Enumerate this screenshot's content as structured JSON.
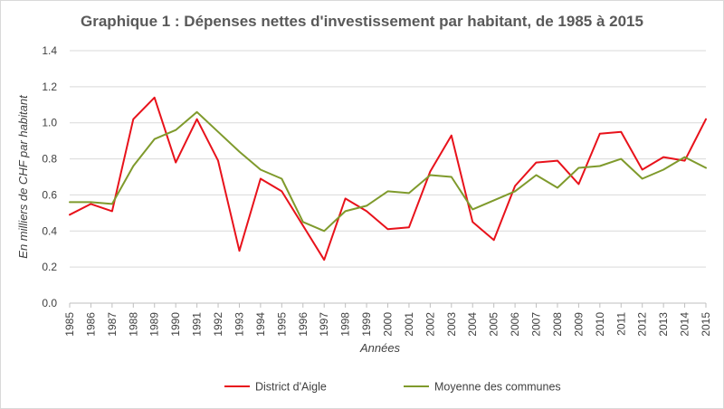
{
  "chart_data": {
    "type": "line",
    "title": "Graphique 1 : Dépenses nettes d'investissement par habitant, de 1985 à 2015",
    "xlabel": "Années",
    "ylabel": "En milliers de CHF par habitant",
    "ylim": [
      0,
      1.4
    ],
    "yticks": [
      "0.0",
      "0.2",
      "0.4",
      "0.6",
      "0.8",
      "1.0",
      "1.2",
      "1.4"
    ],
    "grid": "horizontal",
    "legend": "bottom",
    "categories": [
      "1985",
      "1986",
      "1987",
      "1988",
      "1989",
      "1990",
      "1991",
      "1992",
      "1993",
      "1994",
      "1995",
      "1996",
      "1997",
      "1998",
      "1999",
      "2000",
      "2001",
      "2002",
      "2003",
      "2004",
      "2005",
      "2006",
      "2007",
      "2008",
      "2009",
      "2010",
      "2011",
      "2012",
      "2013",
      "2014",
      "2015"
    ],
    "series": [
      {
        "name": "District d'Aigle",
        "color": "#e8121b",
        "values": [
          0.49,
          0.55,
          0.51,
          1.02,
          1.14,
          0.78,
          1.02,
          0.79,
          0.29,
          0.69,
          0.62,
          0.43,
          0.24,
          0.58,
          0.51,
          0.41,
          0.42,
          0.73,
          0.93,
          0.45,
          0.35,
          0.65,
          0.78,
          0.79,
          0.66,
          0.94,
          0.95,
          0.74,
          0.81,
          0.79,
          1.02
        ]
      },
      {
        "name": "Moyenne des communes",
        "color": "#7f9a2c",
        "values": [
          0.56,
          0.56,
          0.55,
          0.76,
          0.91,
          0.96,
          1.06,
          0.95,
          0.84,
          0.74,
          0.69,
          0.45,
          0.4,
          0.51,
          0.54,
          0.62,
          0.61,
          0.71,
          0.7,
          0.52,
          0.57,
          0.62,
          0.71,
          0.64,
          0.75,
          0.76,
          0.8,
          0.69,
          0.74,
          0.81,
          0.75
        ]
      }
    ]
  }
}
